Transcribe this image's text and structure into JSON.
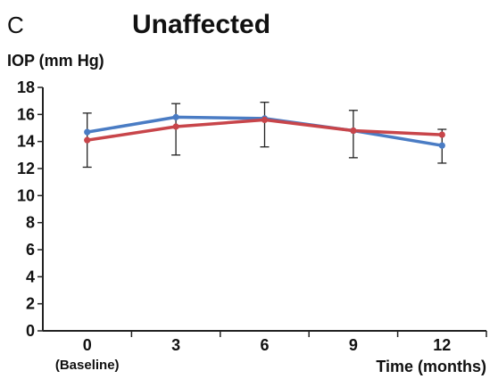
{
  "chart_data": {
    "type": "line",
    "panel_label": "C",
    "title": "Unaffected",
    "ylabel": "IOP (mm Hg)",
    "xlabel": "Time (months)",
    "categories": [
      "0",
      "3",
      "6",
      "9",
      "12"
    ],
    "category_sublabels": [
      "(Baseline)",
      "",
      "",
      "",
      ""
    ],
    "y_ticks": [
      0,
      2,
      4,
      6,
      8,
      10,
      12,
      14,
      16,
      18
    ],
    "ylim": [
      0,
      18
    ],
    "grid": false,
    "series": [
      {
        "color": "#4a7cc4",
        "values": [
          14.7,
          15.8,
          15.7,
          14.8,
          13.7
        ],
        "error_low": [
          12.1,
          13.0,
          13.6,
          12.8,
          12.4
        ],
        "error_high": [
          16.1,
          16.8,
          16.9,
          16.3,
          14.9
        ]
      },
      {
        "color": "#c8454a",
        "values": [
          14.1,
          15.1,
          15.6,
          14.8,
          14.5
        ],
        "error_low": [
          12.1,
          13.0,
          13.6,
          12.8,
          12.4
        ],
        "error_high": [
          16.1,
          16.8,
          16.9,
          16.3,
          14.9
        ]
      }
    ]
  }
}
